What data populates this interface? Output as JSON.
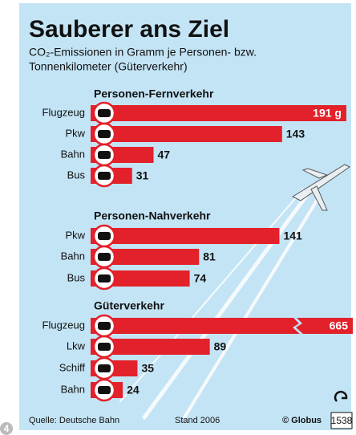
{
  "header": {
    "title": "Sauberer ans Ziel",
    "subtitle": [
      "CO₂-Emissionen in Gramm je Personen- bzw.",
      "Tonnenkilometer (Güterverkehr)"
    ]
  },
  "chart_data": [
    {
      "type": "bar",
      "title": "Personen-Fernverkehr",
      "categories": [
        "Flugzeug",
        "Pkw",
        "Bahn",
        "Bus"
      ],
      "values": [
        191,
        143,
        47,
        31
      ],
      "value_labels": [
        "191 g",
        "143",
        "47",
        "31"
      ],
      "color": "#e3212b"
    },
    {
      "type": "bar",
      "title": "Personen-Nahverkehr",
      "categories": [
        "Pkw",
        "Bahn",
        "Bus"
      ],
      "values": [
        141,
        81,
        74
      ],
      "color": "#e3212b"
    },
    {
      "type": "bar",
      "title": "Güterverkehr",
      "categories": [
        "Flugzeug",
        "Lkw",
        "Schiff",
        "Bahn"
      ],
      "values": [
        665,
        89,
        35,
        24
      ],
      "color": "#e3212b"
    }
  ],
  "footer": {
    "source": "Quelle: Deutsche Bahn",
    "date": "Stand 2006",
    "copyright": "© Globus",
    "number": "1538",
    "page": "4"
  }
}
